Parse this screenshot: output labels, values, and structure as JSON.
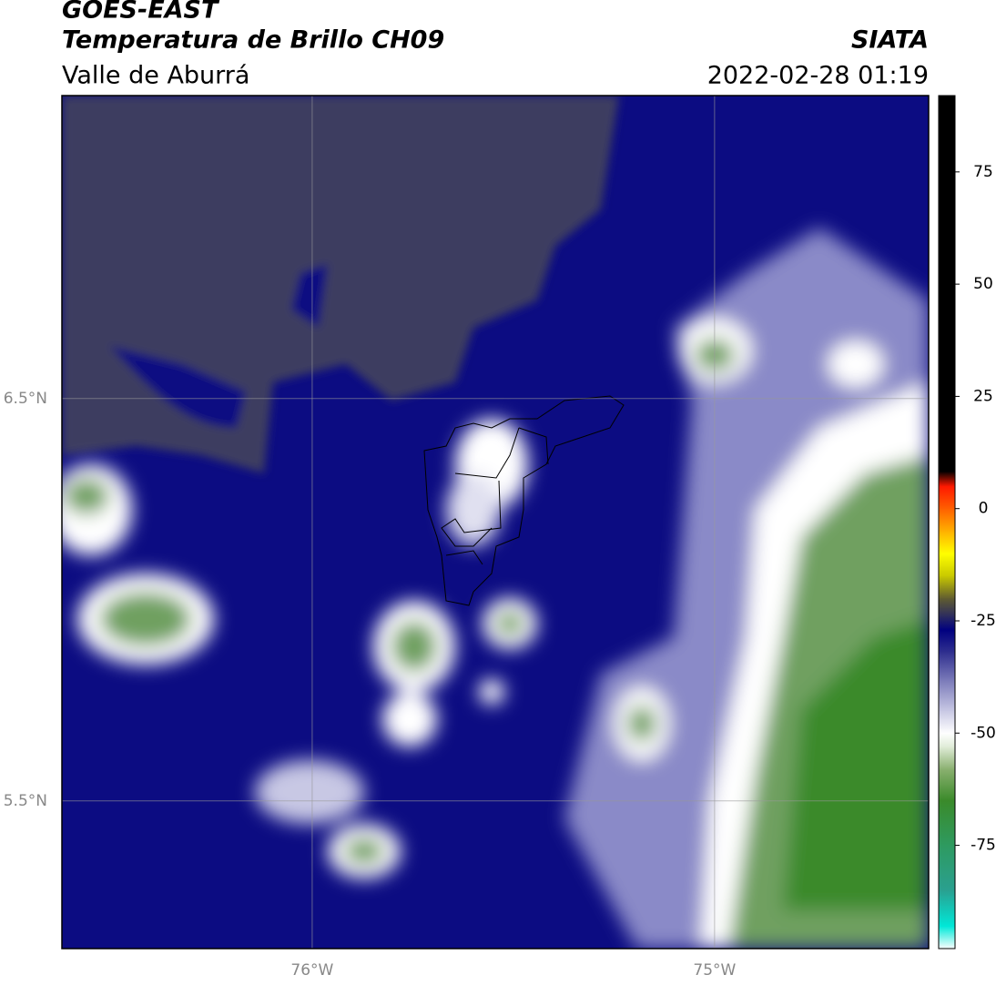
{
  "header": {
    "title": "GOES-EAST",
    "subtitle": "Temperatura de Brillo CH09",
    "region": "Valle de Aburrá",
    "source": "SIATA",
    "datetime": "2022-02-28 01:19"
  },
  "map": {
    "type": "map",
    "xlim": [
      -76.622,
      -74.468
    ],
    "ylim": [
      5.133,
      7.253
    ],
    "xticks": [
      {
        "value": -76,
        "label": "76°W"
      },
      {
        "value": -75,
        "label": "75°W"
      }
    ],
    "yticks": [
      {
        "value": 6.5,
        "label": "6.5°N"
      },
      {
        "value": 5.5,
        "label": "5.5°N"
      }
    ],
    "grid": true
  },
  "colorbar": {
    "lim": [
      -98,
      92
    ],
    "ticks": [
      75,
      50,
      25,
      0,
      -25,
      -50,
      -75
    ],
    "stops": [
      {
        "value": -98,
        "color": "#ffffff"
      },
      {
        "value": -93,
        "color": "#00e8d8"
      },
      {
        "value": -85,
        "color": "#2aa090"
      },
      {
        "value": -75,
        "color": "#2e9a60"
      },
      {
        "value": -65,
        "color": "#3a8a2a"
      },
      {
        "value": -58,
        "color": "#8ab070"
      },
      {
        "value": -53,
        "color": "#e0ecd8"
      },
      {
        "value": -50,
        "color": "#ffffff"
      },
      {
        "value": -45,
        "color": "#c8c8e4"
      },
      {
        "value": -38,
        "color": "#7878b8"
      },
      {
        "value": -32,
        "color": "#30308f"
      },
      {
        "value": -27,
        "color": "#000080"
      },
      {
        "value": -24,
        "color": "#2a2a60"
      },
      {
        "value": -20,
        "color": "#605c30"
      },
      {
        "value": -15,
        "color": "#c8c800"
      },
      {
        "value": -10,
        "color": "#ffff00"
      },
      {
        "value": -5,
        "color": "#ffb000"
      },
      {
        "value": 0,
        "color": "#ff6000"
      },
      {
        "value": 5,
        "color": "#ff1800"
      },
      {
        "value": 8.3,
        "color": "#000000"
      }
    ]
  }
}
